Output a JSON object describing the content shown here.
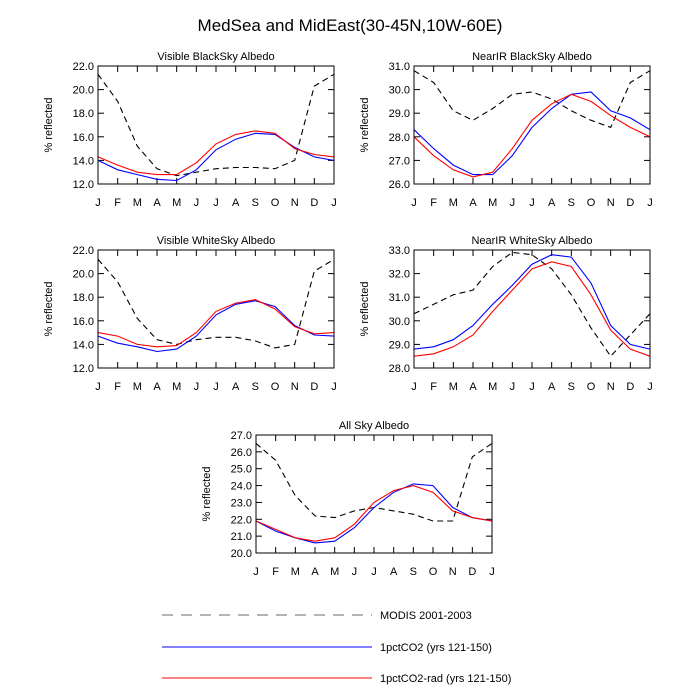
{
  "figure_title": "MedSea and MidEast(30-45N,10W-60E)",
  "months": [
    "J",
    "F",
    "M",
    "A",
    "M",
    "J",
    "J",
    "A",
    "S",
    "O",
    "N",
    "D",
    "J"
  ],
  "legend": [
    {
      "label": "MODIS 2001-2003",
      "color": "#888888",
      "dash": "dashed"
    },
    {
      "label": "1pctCO2 (yrs 121-150)",
      "color": "#0000ff",
      "dash": "solid"
    },
    {
      "label": "1pctCO2-rad (yrs 121-150)",
      "color": "#ff0000",
      "dash": "solid"
    }
  ],
  "chart_data": [
    {
      "type": "line",
      "title": "Visible BlackSky Albedo",
      "ylabel": "% reflected",
      "ylim": [
        12.0,
        22.0
      ],
      "yticks": [
        "12.0",
        "14.0",
        "16.0",
        "18.0",
        "20.0",
        "22.0"
      ],
      "x": [
        "J",
        "F",
        "M",
        "A",
        "M",
        "J",
        "J",
        "A",
        "S",
        "O",
        "N",
        "D",
        "J"
      ],
      "series": [
        {
          "name": "MODIS 2001-2003",
          "color": "#000000",
          "dash": "dashed",
          "values": [
            21.3,
            19.0,
            15.2,
            13.3,
            12.7,
            13.0,
            13.3,
            13.4,
            13.4,
            13.3,
            14.0,
            20.3,
            21.3
          ]
        },
        {
          "name": "1pctCO2 (yrs 121-150)",
          "color": "#0000ff",
          "dash": "solid",
          "values": [
            14.0,
            13.2,
            12.8,
            12.4,
            12.3,
            13.2,
            14.9,
            15.8,
            16.3,
            16.2,
            15.1,
            14.3,
            14.0
          ]
        },
        {
          "name": "1pctCO2-rad (yrs 121-150)",
          "color": "#ff0000",
          "dash": "solid",
          "values": [
            14.3,
            13.6,
            13.0,
            12.8,
            12.8,
            13.8,
            15.4,
            16.2,
            16.5,
            16.3,
            15.0,
            14.5,
            14.3
          ]
        }
      ]
    },
    {
      "type": "line",
      "title": "NearIR BlackSky Albedo",
      "ylabel": "% reflected",
      "ylim": [
        26.0,
        31.0
      ],
      "yticks": [
        "26.0",
        "27.0",
        "28.0",
        "29.0",
        "30.0",
        "31.0"
      ],
      "x": [
        "J",
        "F",
        "M",
        "A",
        "M",
        "J",
        "J",
        "A",
        "S",
        "O",
        "N",
        "D",
        "J"
      ],
      "series": [
        {
          "name": "MODIS 2001-2003",
          "color": "#000000",
          "dash": "dashed",
          "values": [
            30.8,
            30.3,
            29.1,
            28.7,
            29.2,
            29.8,
            29.9,
            29.6,
            29.1,
            28.7,
            28.4,
            30.3,
            30.8
          ]
        },
        {
          "name": "1pctCO2 (yrs 121-150)",
          "color": "#0000ff",
          "dash": "solid",
          "values": [
            28.3,
            27.5,
            26.8,
            26.4,
            26.4,
            27.2,
            28.4,
            29.2,
            29.8,
            29.9,
            29.1,
            28.8,
            28.3
          ]
        },
        {
          "name": "1pctCO2-rad (yrs 121-150)",
          "color": "#ff0000",
          "dash": "solid",
          "values": [
            28.0,
            27.2,
            26.6,
            26.3,
            26.5,
            27.5,
            28.7,
            29.4,
            29.8,
            29.5,
            28.9,
            28.4,
            28.0
          ]
        }
      ]
    },
    {
      "type": "line",
      "title": "Visible WhiteSky Albedo",
      "ylabel": "% reflected",
      "ylim": [
        12.0,
        22.0
      ],
      "yticks": [
        "12.0",
        "14.0",
        "16.0",
        "18.0",
        "20.0",
        "22.0"
      ],
      "x": [
        "J",
        "F",
        "M",
        "A",
        "M",
        "J",
        "J",
        "A",
        "S",
        "O",
        "N",
        "D",
        "J"
      ],
      "series": [
        {
          "name": "MODIS 2001-2003",
          "color": "#000000",
          "dash": "dashed",
          "values": [
            21.2,
            19.3,
            16.2,
            14.4,
            14.0,
            14.4,
            14.6,
            14.6,
            14.3,
            13.7,
            14.0,
            20.2,
            21.2
          ]
        },
        {
          "name": "1pctCO2 (yrs 121-150)",
          "color": "#0000ff",
          "dash": "solid",
          "values": [
            14.7,
            14.1,
            13.8,
            13.4,
            13.6,
            14.7,
            16.5,
            17.4,
            17.7,
            17.2,
            15.6,
            14.8,
            14.7
          ]
        },
        {
          "name": "1pctCO2-rad (yrs 121-150)",
          "color": "#ff0000",
          "dash": "solid",
          "values": [
            15.0,
            14.7,
            14.0,
            13.8,
            13.9,
            15.0,
            16.8,
            17.5,
            17.8,
            17.0,
            15.5,
            14.9,
            15.0
          ]
        }
      ]
    },
    {
      "type": "line",
      "title": "NearIR WhiteSky Albedo",
      "ylabel": "% reflected",
      "ylim": [
        28.0,
        33.0
      ],
      "yticks": [
        "28.0",
        "29.0",
        "30.0",
        "31.0",
        "32.0",
        "33.0"
      ],
      "x": [
        "J",
        "F",
        "M",
        "A",
        "M",
        "J",
        "J",
        "A",
        "S",
        "O",
        "N",
        "D",
        "J"
      ],
      "series": [
        {
          "name": "MODIS 2001-2003",
          "color": "#000000",
          "dash": "dashed",
          "values": [
            30.3,
            30.7,
            31.1,
            31.3,
            32.3,
            32.9,
            32.8,
            32.2,
            31.1,
            29.7,
            28.5,
            29.4,
            30.3
          ]
        },
        {
          "name": "1pctCO2 (yrs 121-150)",
          "color": "#0000ff",
          "dash": "solid",
          "values": [
            28.8,
            28.9,
            29.2,
            29.8,
            30.7,
            31.5,
            32.4,
            32.8,
            32.7,
            31.6,
            29.8,
            29.0,
            28.8
          ]
        },
        {
          "name": "1pctCO2-rad (yrs 121-150)",
          "color": "#ff0000",
          "dash": "solid",
          "values": [
            28.5,
            28.6,
            28.9,
            29.4,
            30.4,
            31.3,
            32.2,
            32.5,
            32.3,
            31.1,
            29.6,
            28.8,
            28.5
          ]
        }
      ]
    },
    {
      "type": "line",
      "title": "All Sky Albedo",
      "ylabel": "% reflected",
      "ylim": [
        20.0,
        27.0
      ],
      "yticks": [
        "20.0",
        "21.0",
        "22.0",
        "23.0",
        "24.0",
        "25.0",
        "26.0",
        "27.0"
      ],
      "x": [
        "J",
        "F",
        "M",
        "A",
        "M",
        "J",
        "J",
        "A",
        "S",
        "O",
        "N",
        "D",
        "J"
      ],
      "series": [
        {
          "name": "MODIS 2001-2003",
          "color": "#000000",
          "dash": "dashed",
          "values": [
            26.5,
            25.5,
            23.4,
            22.2,
            22.1,
            22.5,
            22.7,
            22.5,
            22.3,
            21.9,
            21.9,
            25.7,
            26.5
          ]
        },
        {
          "name": "1pctCO2 (yrs 121-150)",
          "color": "#0000ff",
          "dash": "solid",
          "values": [
            21.9,
            21.3,
            20.9,
            20.6,
            20.7,
            21.5,
            22.7,
            23.6,
            24.1,
            24.0,
            22.7,
            22.1,
            21.9
          ]
        },
        {
          "name": "1pctCO2-rad (yrs 121-150)",
          "color": "#ff0000",
          "dash": "solid",
          "values": [
            21.9,
            21.4,
            20.9,
            20.7,
            20.9,
            21.7,
            23.0,
            23.7,
            24.0,
            23.6,
            22.5,
            22.1,
            21.9
          ]
        }
      ]
    }
  ]
}
